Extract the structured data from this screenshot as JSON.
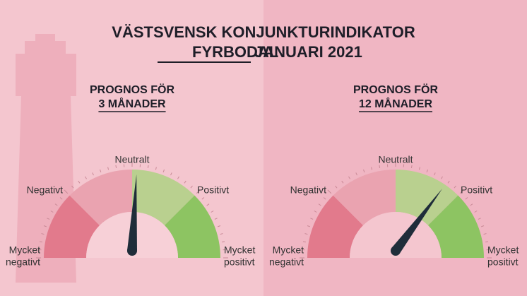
{
  "header": {
    "title": "VÄSTSVENSK KONJUNKTURINDIKATOR",
    "region": "FYRBODAL",
    "period": "JANUARI 2021"
  },
  "gauges": [
    {
      "heading": "PROGNOS FÖR",
      "horizon": "3 MÅNADER",
      "labels": {
        "neutral": "Neutralt",
        "negative": "Negativt",
        "positive": "Positivt",
        "very_negative": [
          "Mycket",
          "negativt"
        ],
        "very_positive": [
          "Mycket",
          "positivt"
        ]
      }
    },
    {
      "heading": "PROGNOS FÖR",
      "horizon": "12 MÅNADER",
      "labels": {
        "neutral": "Neutralt",
        "negative": "Negativt",
        "positive": "Positivt",
        "very_negative": [
          "Mycket",
          "negativt"
        ],
        "very_positive": [
          "Mycket",
          "positivt"
        ]
      }
    }
  ]
}
